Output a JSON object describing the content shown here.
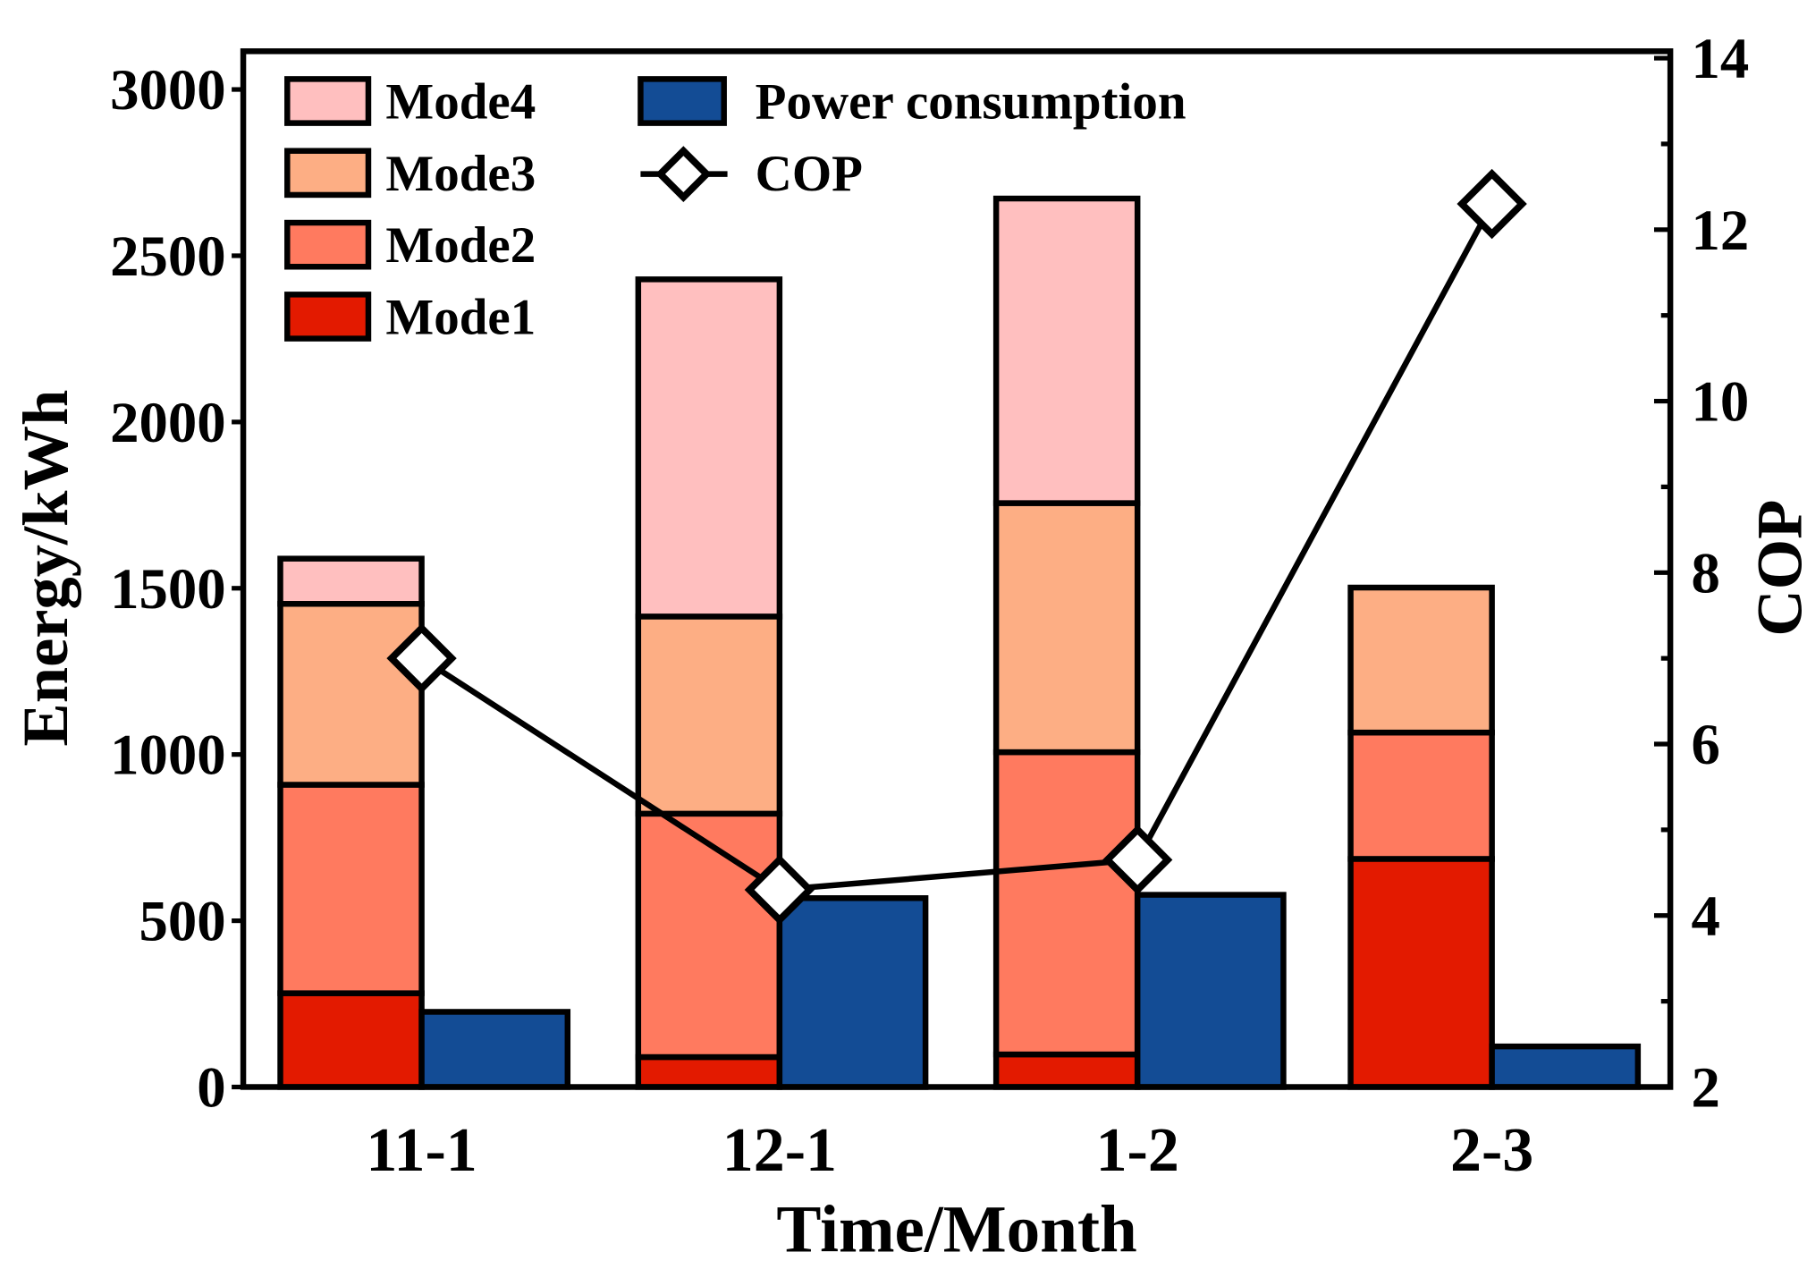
{
  "chart_data": {
    "type": "bar",
    "title": "",
    "xlabel": "Time/Month",
    "ylabel": "Energy/kWh",
    "y2label": "COP",
    "categories": [
      "11-1",
      "12-1",
      "1-2",
      "2-3"
    ],
    "ylim": [
      0,
      3100
    ],
    "y2lim": [
      2,
      14
    ],
    "yticks": [
      0,
      500,
      1000,
      1500,
      2000,
      2500,
      3000
    ],
    "y2ticks": [
      2,
      4,
      6,
      8,
      10,
      12,
      14
    ],
    "stacked_series": [
      {
        "name": "Mode1",
        "color": "#E31A00",
        "values": [
          282,
          90,
          98,
          686
        ]
      },
      {
        "name": "Mode2",
        "color": "#FF7A5F",
        "values": [
          627,
          732,
          909,
          380
        ]
      },
      {
        "name": "Mode3",
        "color": "#FDAE84",
        "values": [
          544,
          593,
          749,
          436
        ]
      },
      {
        "name": "Mode4",
        "color": "#FFBFBF",
        "values": [
          136,
          1014,
          916,
          0
        ]
      }
    ],
    "power_series": {
      "name": "Power consumption",
      "color": "#134C95",
      "values": [
        226,
        568,
        578,
        122
      ]
    },
    "cop_series": {
      "name": "COP",
      "axis": "right",
      "values": [
        7.0,
        4.3,
        4.65,
        12.3
      ]
    },
    "legend": {
      "placement": "top-left",
      "entries": [
        "Mode4",
        "Mode3",
        "Mode2",
        "Mode1",
        "Power consumption",
        "COP"
      ]
    },
    "grid": false
  }
}
